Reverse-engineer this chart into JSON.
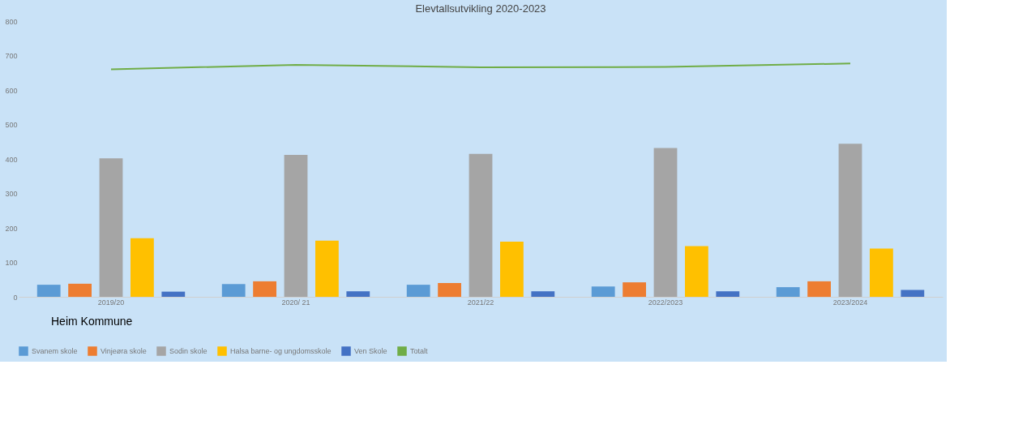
{
  "chart_data": {
    "type": "bar",
    "title": "Elevtallsutvikling 2020-2023",
    "categories": [
      "2019/20",
      "2020/ 21",
      "2021/22",
      "2022/2023",
      "2023/2024"
    ],
    "series": [
      {
        "name": "Svanem skole",
        "color": "#5b9bd5",
        "values": [
          35,
          37,
          35,
          30,
          28
        ]
      },
      {
        "name": "Vinjeøra skole",
        "color": "#ed7d31",
        "values": [
          38,
          45,
          40,
          42,
          45
        ]
      },
      {
        "name": "Sodin skole",
        "color": "#a5a5a5",
        "values": [
          402,
          412,
          415,
          432,
          444
        ]
      },
      {
        "name": "Halsa barne- og ungdomsskole",
        "color": "#ffc000",
        "values": [
          170,
          163,
          160,
          147,
          140
        ]
      },
      {
        "name": "Ven Skole",
        "color": "#4472c4",
        "values": [
          15,
          16,
          16,
          16,
          20
        ]
      },
      {
        "name": "Totalt",
        "color": "#70ad47",
        "type": "line",
        "values": [
          660,
          673,
          666,
          667,
          677
        ]
      }
    ],
    "ylim": [
      0,
      800
    ],
    "yticks": [
      0,
      100,
      200,
      300,
      400,
      500,
      600,
      700,
      800
    ],
    "grid": false,
    "legend": "bottom",
    "annotations": [
      "Heim Kommune"
    ]
  }
}
